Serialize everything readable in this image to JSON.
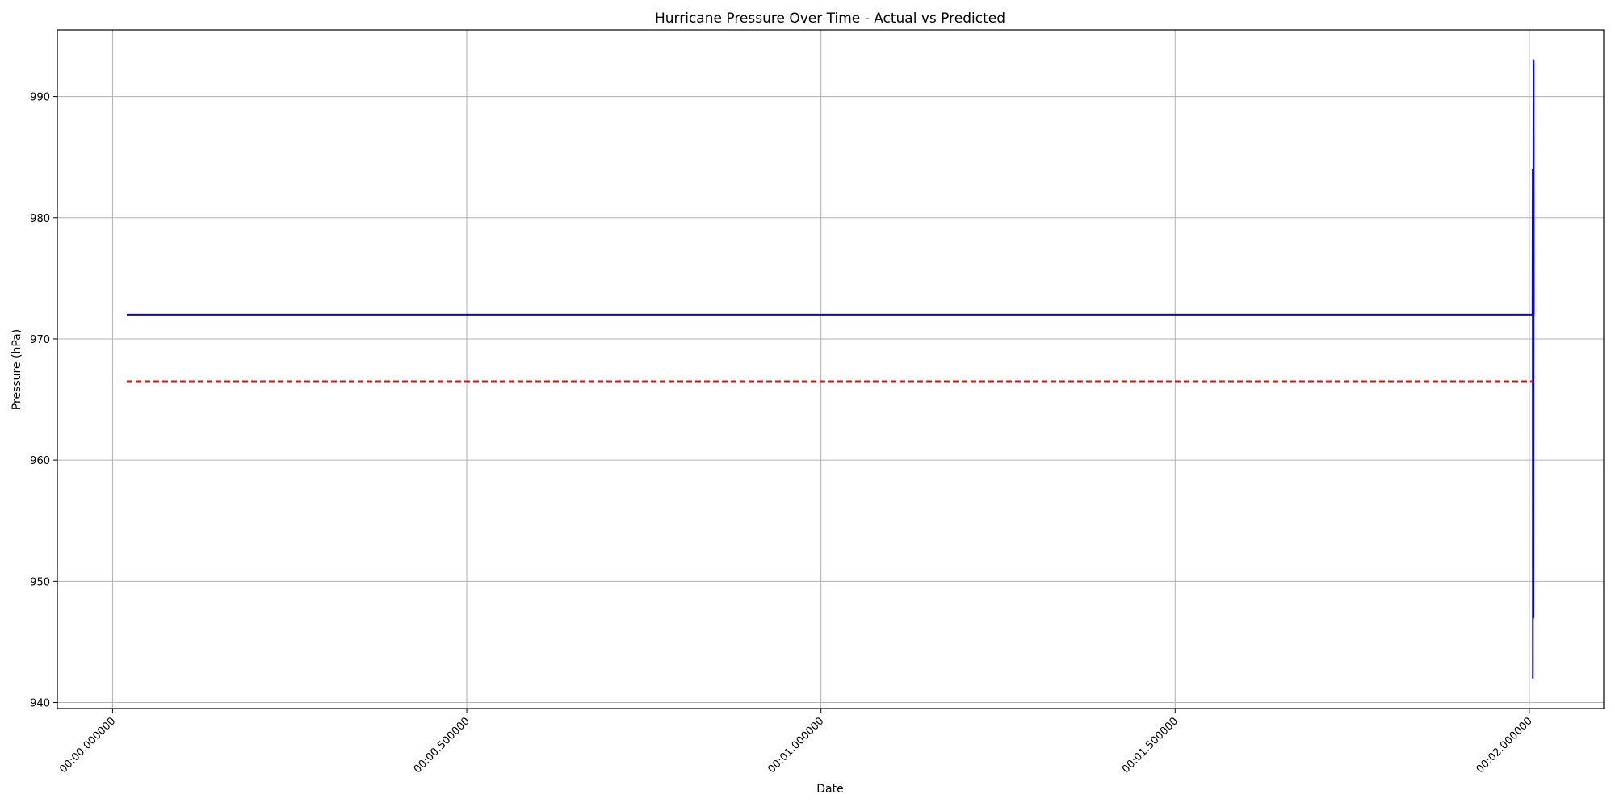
{
  "chart_data": {
    "type": "line",
    "title": "Hurricane Pressure Over Time - Actual vs Predicted",
    "xlabel": "Date",
    "ylabel": "Pressure (hPa)",
    "x_tick_labels": [
      "00:00.000000",
      "00:00.500000",
      "00:01.000000",
      "00:01.500000",
      "00:02.000000"
    ],
    "x_ticks_seconds": [
      0,
      0.5,
      1.0,
      1.5,
      2.0
    ],
    "xlim_seconds": [
      -0.078,
      2.105
    ],
    "y_ticks": [
      940,
      950,
      960,
      970,
      980,
      990
    ],
    "ylim": [
      939.5,
      995.5
    ],
    "grid": true,
    "series": [
      {
        "color": "#0000ff",
        "style": "solid",
        "x_seconds": [
          0.02,
          2.0045,
          2.0048,
          2.005,
          2.0052,
          2.0055,
          2.0058,
          2.006,
          2.0062,
          2.0064
        ],
        "values": [
          972,
          972,
          984,
          942,
          972,
          964,
          987,
          947,
          993,
          972
        ]
      },
      {
        "color": "#ff0000",
        "style": "dashed",
        "x_seconds": [
          0.02,
          2.005
        ],
        "values": [
          966.5,
          966.5
        ]
      }
    ]
  }
}
